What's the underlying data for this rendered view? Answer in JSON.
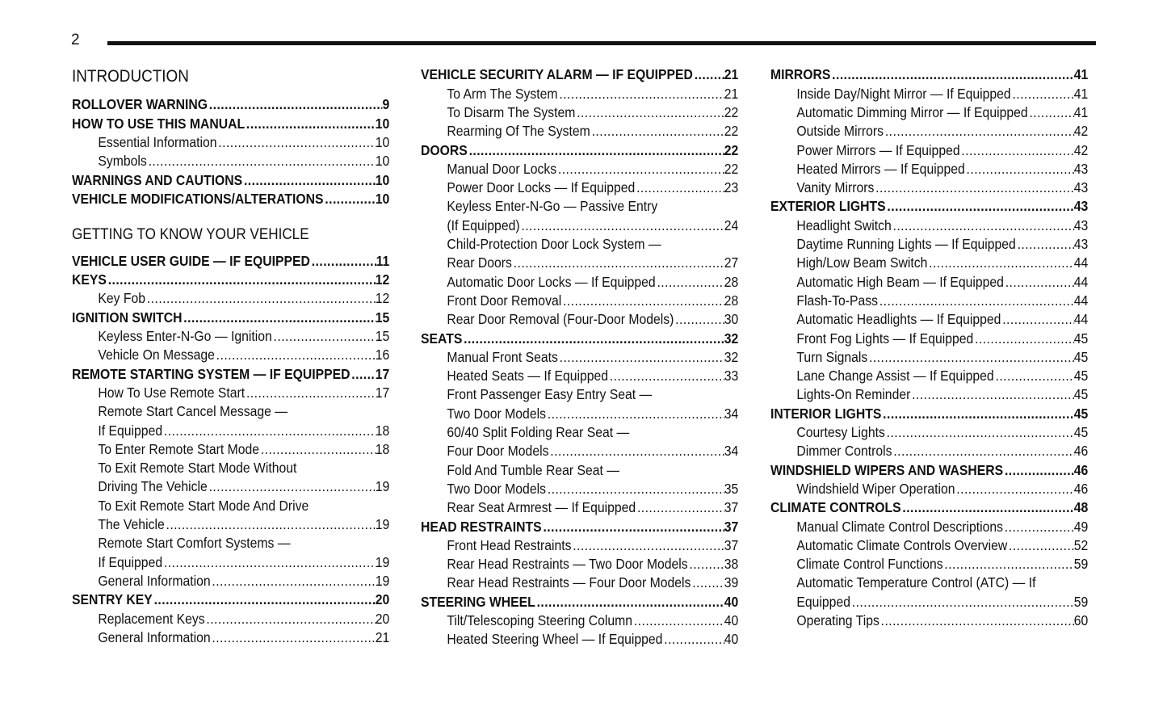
{
  "page_number": "2",
  "columns": [
    [
      {
        "h": "h1",
        "t": "INTRODUCTION"
      },
      {
        "b": 1,
        "t": "ROLLOVER WARNING",
        "p": "9"
      },
      {
        "b": 1,
        "t": "HOW TO USE THIS MANUAL",
        "p": "10"
      },
      {
        "t": "Essential Information",
        "p": "10"
      },
      {
        "t": "Symbols",
        "p": "10"
      },
      {
        "b": 1,
        "t": "WARNINGS AND CAUTIONS",
        "p": "10"
      },
      {
        "b": 1,
        "t": "VEHICLE MODIFICATIONS/ALTERATIONS",
        "p": "10"
      },
      {
        "h": "h2",
        "t": "GETTING TO KNOW YOUR VEHICLE"
      },
      {
        "b": 1,
        "t": "VEHICLE USER GUIDE — IF EQUIPPED",
        "p": "11"
      },
      {
        "b": 1,
        "t": "KEYS",
        "p": "12"
      },
      {
        "t": "Key Fob",
        "p": "12"
      },
      {
        "b": 1,
        "t": "IGNITION SWITCH",
        "p": "15"
      },
      {
        "t": "Keyless Enter-N-Go — Ignition",
        "p": "15"
      },
      {
        "t": "Vehicle On Message",
        "p": "16"
      },
      {
        "b": 1,
        "t": "REMOTE STARTING SYSTEM — IF EQUIPPED",
        "p": "17"
      },
      {
        "t": "How To Use Remote Start",
        "p": "17"
      },
      {
        "t": "Remote Start Cancel Message —"
      },
      {
        "t": "If Equipped",
        "p": "18"
      },
      {
        "t": "To Enter Remote Start Mode",
        "p": "18"
      },
      {
        "t": "To Exit Remote Start Mode Without"
      },
      {
        "t": "Driving The Vehicle",
        "p": "19"
      },
      {
        "t": "To Exit Remote Start Mode And Drive"
      },
      {
        "t": "The Vehicle",
        "p": "19"
      },
      {
        "t": "Remote Start Comfort Systems —"
      },
      {
        "t": "If Equipped",
        "p": "19"
      },
      {
        "t": "General Information",
        "p": "19"
      },
      {
        "b": 1,
        "t": "SENTRY KEY",
        "p": "20"
      },
      {
        "t": "Replacement Keys",
        "p": "20"
      },
      {
        "t": "General Information",
        "p": "21"
      }
    ],
    [
      {
        "b": 1,
        "t": "VEHICLE SECURITY ALARM — IF EQUIPPED",
        "p": "21"
      },
      {
        "t": "To Arm The System",
        "p": "21"
      },
      {
        "t": "To Disarm The System",
        "p": "22"
      },
      {
        "t": "Rearming Of The System",
        "p": "22"
      },
      {
        "b": 1,
        "t": "DOORS",
        "p": "22"
      },
      {
        "t": "Manual Door Locks",
        "p": "22"
      },
      {
        "t": "Power Door Locks — If Equipped",
        "p": "23"
      },
      {
        "t": "Keyless Enter-N-Go — Passive Entry"
      },
      {
        "t": "(If Equipped)",
        "p": "24"
      },
      {
        "t": "Child-Protection Door Lock System —"
      },
      {
        "t": "Rear Doors",
        "p": "27"
      },
      {
        "t": "Automatic Door Locks — If Equipped",
        "p": "28"
      },
      {
        "t": "Front Door Removal",
        "p": "28"
      },
      {
        "t": "Rear Door Removal (Four-Door Models)",
        "p": "30"
      },
      {
        "b": 1,
        "t": "SEATS",
        "p": "32"
      },
      {
        "t": "Manual Front Seats",
        "p": "32"
      },
      {
        "t": "Heated Seats — If Equipped",
        "p": "33"
      },
      {
        "t": "Front Passenger Easy Entry Seat —"
      },
      {
        "t": "Two Door Models",
        "p": "34"
      },
      {
        "t": "60/40 Split Folding Rear Seat —"
      },
      {
        "t": "Four Door Models",
        "p": "34"
      },
      {
        "t": "Fold And Tumble Rear Seat —"
      },
      {
        "t": "Two Door Models",
        "p": "35"
      },
      {
        "t": "Rear Seat Armrest — If Equipped",
        "p": "37"
      },
      {
        "b": 1,
        "t": "HEAD RESTRAINTS",
        "p": "37"
      },
      {
        "t": "Front Head Restraints",
        "p": "37"
      },
      {
        "t": "Rear Head Restraints — Two Door Models",
        "p": "38"
      },
      {
        "t": "Rear Head Restraints — Four Door Models",
        "p": "39"
      },
      {
        "b": 1,
        "t": "STEERING WHEEL",
        "p": "40"
      },
      {
        "t": "Tilt/Telescoping Steering Column",
        "p": "40"
      },
      {
        "t": "Heated Steering Wheel — If Equipped",
        "p": "40"
      }
    ],
    [
      {
        "b": 1,
        "t": "MIRRORS",
        "p": "41"
      },
      {
        "t": "Inside Day/Night Mirror — If Equipped",
        "p": "41"
      },
      {
        "t": "Automatic Dimming Mirror — If Equipped",
        "p": "41"
      },
      {
        "t": "Outside Mirrors",
        "p": "42"
      },
      {
        "t": "Power Mirrors — If Equipped",
        "p": "42"
      },
      {
        "t": "Heated Mirrors — If Equipped",
        "p": "43"
      },
      {
        "t": "Vanity Mirrors",
        "p": "43"
      },
      {
        "b": 1,
        "t": "EXTERIOR LIGHTS",
        "p": "43"
      },
      {
        "t": "Headlight Switch",
        "p": "43"
      },
      {
        "t": "Daytime Running Lights — If Equipped",
        "p": "43"
      },
      {
        "t": "High/Low Beam Switch",
        "p": "44"
      },
      {
        "t": "Automatic High Beam — If Equipped",
        "p": "44"
      },
      {
        "t": "Flash-To-Pass",
        "p": "44"
      },
      {
        "t": "Automatic Headlights — If Equipped",
        "p": "44"
      },
      {
        "t": "Front Fog Lights — If Equipped",
        "p": "45"
      },
      {
        "t": "Turn Signals",
        "p": "45"
      },
      {
        "t": "Lane Change Assist — If Equipped",
        "p": "45"
      },
      {
        "t": "Lights-On Reminder",
        "p": "45"
      },
      {
        "b": 1,
        "t": "INTERIOR LIGHTS",
        "p": "45"
      },
      {
        "t": "Courtesy Lights",
        "p": "45"
      },
      {
        "t": "Dimmer Controls",
        "p": "46"
      },
      {
        "b": 1,
        "t": "WINDSHIELD WIPERS AND WASHERS",
        "p": "46"
      },
      {
        "t": "Windshield Wiper Operation",
        "p": "46"
      },
      {
        "b": 1,
        "t": "CLIMATE CONTROLS",
        "p": "48"
      },
      {
        "t": "Manual Climate Control Descriptions",
        "p": "49"
      },
      {
        "t": "Automatic Climate Controls Overview",
        "p": "52"
      },
      {
        "t": "Climate Control Functions",
        "p": "59"
      },
      {
        "t": "Automatic Temperature Control (ATC) — If"
      },
      {
        "t": "Equipped",
        "p": "59"
      },
      {
        "t": "Operating Tips",
        "p": "60"
      }
    ]
  ]
}
